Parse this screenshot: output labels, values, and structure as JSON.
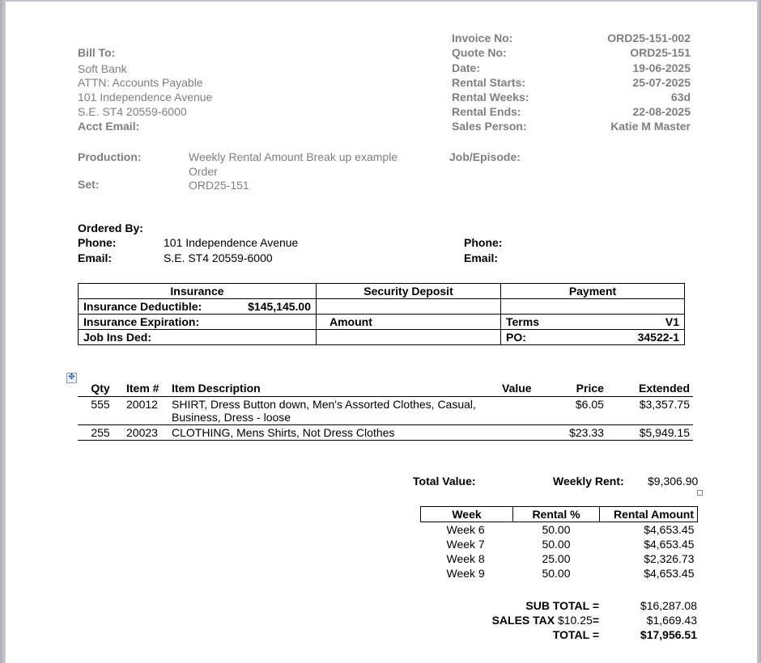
{
  "bill_to": {
    "label": "Bill To:",
    "name": "Soft Bank",
    "attn": "ATTN: Accounts Payable",
    "address1": "101 Independence Avenue",
    "address2": "S.E. ST4 20559-6000",
    "acct_email_label": "Acct Email:"
  },
  "invoice_info": [
    {
      "label": "Invoice No:",
      "value": "ORD25-151-002"
    },
    {
      "label": "Quote No:",
      "value": "ORD25-151"
    },
    {
      "label": "Date:",
      "value": "19-06-2025"
    },
    {
      "label": "Rental Starts:",
      "value": "25-07-2025"
    },
    {
      "label": "Rental Weeks:",
      "value": "63d"
    },
    {
      "label": "Rental Ends:",
      "value": "22-08-2025"
    },
    {
      "label": "Sales Person:",
      "value": "Katie M Master"
    }
  ],
  "production": {
    "label": "Production:",
    "value_line1": "Weekly Rental  Amount Break up example",
    "value_line2": "Order",
    "set_label": "Set:",
    "set_value": "ORD25-151",
    "job_label": "Job/Episode:"
  },
  "ordered_by": {
    "label": "Ordered By:",
    "phone_label": "Phone:",
    "phone_value": "101 Independence Avenue",
    "email_label": "Email:",
    "email_value": "S.E. ST4 20559-6000",
    "phone2_label": "Phone:",
    "email2_label": "Email:"
  },
  "insurance_table": {
    "headers": [
      "Insurance",
      "Security Deposit",
      "Payment"
    ],
    "deductible_label": "Insurance Deductible:",
    "deductible_value": "$145,145.00",
    "expiration_label": "Insurance Expiration:",
    "amount_label": "Amount",
    "terms_label": "Terms",
    "terms_value": "V1",
    "job_ins_label": "Job Ins Ded:",
    "po_label": "PO:",
    "po_value": "34522-1"
  },
  "items": {
    "headers": [
      "Qty",
      "Item #",
      "Item Description",
      "Value",
      "Price",
      "Extended"
    ],
    "rows": [
      {
        "qty": "555",
        "item": "20012",
        "desc1": "SHIRT, Dress Button down, Men's Assorted Clothes, Casual,",
        "desc2": "Business, Dress - loose",
        "value": "",
        "price": "$6.05",
        "extended": "$3,357.75"
      },
      {
        "qty": "255",
        "item": "20023",
        "desc1": "CLOTHING, Mens Shirts, Not Dress Clothes",
        "desc2": "",
        "value": "",
        "price": "$23.33",
        "extended": "$5,949.15"
      }
    ]
  },
  "totals_top": {
    "total_value_label": "Total Value:",
    "weekly_rent_label": "Weekly Rent:",
    "weekly_rent_value": "$9,306.90"
  },
  "weeks": {
    "headers": [
      "Week",
      "Rental %",
      "Rental Amount"
    ],
    "rows": [
      {
        "week": "Week 6",
        "pct": "50.00",
        "amount": "$4,653.45"
      },
      {
        "week": "Week 7",
        "pct": "50.00",
        "amount": "$4,653.45"
      },
      {
        "week": "Week 8",
        "pct": "25.00",
        "amount": "$2,326.73"
      },
      {
        "week": "Week 9",
        "pct": "50.00",
        "amount": "$4,653.45"
      }
    ]
  },
  "summary": {
    "subtotal_label": "SUB TOTAL =",
    "subtotal_value": "$16,287.08",
    "tax_label": "SALES TAX",
    "tax_rate": "$10.25",
    "tax_eq": "=",
    "tax_value": "$1,669.43",
    "total_label": "TOTAL =",
    "total_value": "$17,956.51"
  }
}
